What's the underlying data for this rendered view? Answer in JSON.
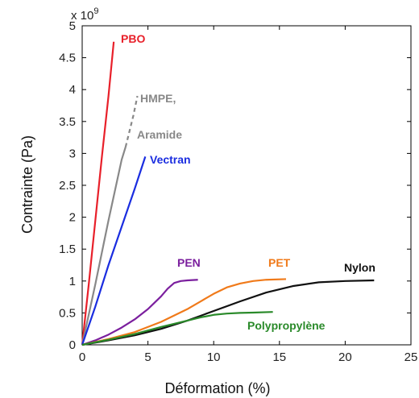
{
  "chart_data": {
    "type": "line",
    "title": "",
    "xlabel": "Déformation (%)",
    "ylabel": "Contrainte (Pa)",
    "y_multiplier": "x 10",
    "y_multiplier_exp": "9",
    "xlim": [
      0,
      25
    ],
    "ylim": [
      0,
      5000000000
    ],
    "y_scale_factor": 1000000000,
    "x_ticks": [
      "0",
      "5",
      "10",
      "15",
      "20",
      "25"
    ],
    "y_ticks": [
      "0",
      "0.5",
      "1",
      "1.5",
      "2",
      "2.5",
      "3",
      "3.5",
      "4",
      "4.5",
      "5"
    ],
    "grid": false,
    "series": [
      {
        "label": "PBO",
        "color": "#e8202a",
        "dashed_tail": false,
        "x": [
          0,
          0.5,
          1.0,
          1.5,
          2.0,
          2.4
        ],
        "y": [
          0,
          950000000,
          1950000000,
          2950000000,
          3900000000,
          4750000000
        ]
      },
      {
        "label": "HMPE,",
        "label2": "Aramide",
        "color": "#888888",
        "dashed_tail": true,
        "x": [
          0,
          1.0,
          2.0,
          3.0,
          3.3,
          3.6,
          3.9,
          4.2
        ],
        "y": [
          0,
          950000000,
          1950000000,
          2900000000,
          3100000000,
          3350000000,
          3600000000,
          3900000000
        ]
      },
      {
        "label": "Vectran",
        "color": "#1a2de0",
        "dashed_tail": false,
        "x": [
          0,
          1.0,
          2.0,
          3.0,
          4.0,
          4.8
        ],
        "y": [
          0,
          600000000,
          1250000000,
          1850000000,
          2450000000,
          2950000000
        ]
      },
      {
        "label": "PEN",
        "color": "#7b1f9e",
        "dashed_tail": false,
        "x": [
          0,
          1,
          2,
          3,
          4,
          5,
          6,
          6.5,
          7,
          7.5,
          8,
          8.8
        ],
        "y": [
          0,
          70000000,
          160000000,
          270000000,
          400000000,
          560000000,
          760000000,
          880000000,
          970000000,
          1000000000,
          1010000000,
          1020000000
        ]
      },
      {
        "label": "PET",
        "color": "#f07a1a",
        "dashed_tail": false,
        "x": [
          0,
          2,
          4,
          6,
          8,
          9,
          10,
          11,
          12,
          13,
          14,
          15.5
        ],
        "y": [
          0,
          90000000,
          200000000,
          360000000,
          560000000,
          680000000,
          800000000,
          900000000,
          960000000,
          1000000000,
          1020000000,
          1030000000
        ]
      },
      {
        "label": "Nylon",
        "color": "#111111",
        "dashed_tail": false,
        "x": [
          0,
          2,
          4,
          6,
          8,
          10,
          12,
          14,
          16,
          18,
          20,
          22.2
        ],
        "y": [
          0,
          70000000,
          150000000,
          250000000,
          380000000,
          530000000,
          680000000,
          820000000,
          920000000,
          980000000,
          1000000000,
          1010000000
        ]
      },
      {
        "label": "Polypropylène",
        "color": "#2a8a2a",
        "dashed_tail": false,
        "x": [
          0,
          2,
          4,
          6,
          8,
          9,
          10,
          11,
          12,
          13,
          14.5
        ],
        "y": [
          0,
          80000000,
          170000000,
          280000000,
          380000000,
          430000000,
          470000000,
          490000000,
          500000000,
          505000000,
          515000000
        ]
      }
    ]
  }
}
